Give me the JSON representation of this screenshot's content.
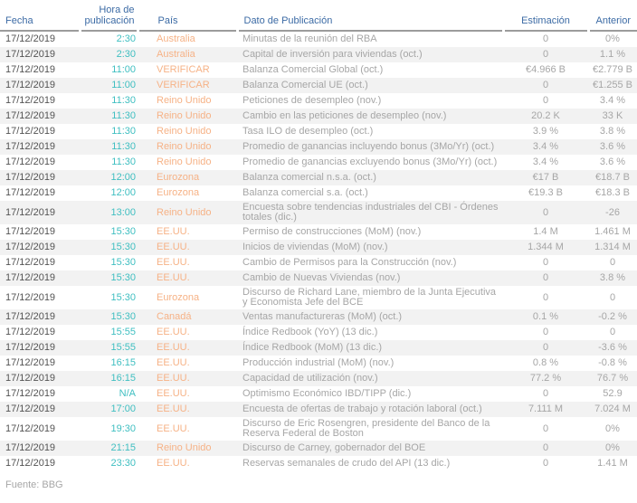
{
  "source_note": "Fuente: BBG",
  "colors": {
    "header_blue": "#3C6BA5",
    "time_teal": "#3FBFC1",
    "country_orange": "#F6B286",
    "date_text": "#545454",
    "muted_text": "#A6A6A6",
    "row_alt_bg": "#F2F2F2",
    "header_line": "#9C9C9C"
  },
  "table": {
    "headers": [
      "Fecha",
      "Hora de publicación",
      "País",
      "Dato de Publicación",
      "Estimación",
      "Anterior"
    ],
    "rows": [
      {
        "fecha": "17/12/2019",
        "hora": "2:30",
        "pais": "Australia",
        "dato": "Minutas de la reunión del RBA",
        "estimacion": "0",
        "anterior": "0%"
      },
      {
        "fecha": "17/12/2019",
        "hora": "2:30",
        "pais": "Australia",
        "dato": "Capital de inversión para viviendas (oct.)",
        "estimacion": "0",
        "anterior": "1.1 %"
      },
      {
        "fecha": "17/12/2019",
        "hora": "11:00",
        "pais": "VERIFICAR",
        "dato": "Balanza Comercial Global (oct.)",
        "estimacion": "€4.966 B",
        "anterior": "€2.779 B"
      },
      {
        "fecha": "17/12/2019",
        "hora": "11:00",
        "pais": "VERIFICAR",
        "dato": "Balanza Comercial UE (oct.)",
        "estimacion": "0",
        "anterior": "€1.255 B"
      },
      {
        "fecha": "17/12/2019",
        "hora": "11:30",
        "pais": "Reino Unido",
        "dato": "Peticiones de desempleo (nov.)",
        "estimacion": "0",
        "anterior": "3.4 %"
      },
      {
        "fecha": "17/12/2019",
        "hora": "11:30",
        "pais": "Reino Unido",
        "dato": "Cambio en las peticiones de desempleo (nov.)",
        "estimacion": "20.2 K",
        "anterior": "33 K"
      },
      {
        "fecha": "17/12/2019",
        "hora": "11:30",
        "pais": "Reino Unido",
        "dato": "Tasa ILO de desempleo (oct.)",
        "estimacion": "3.9 %",
        "anterior": "3.8 %"
      },
      {
        "fecha": "17/12/2019",
        "hora": "11:30",
        "pais": "Reino Unido",
        "dato": "Promedio de ganancias incluyendo bonus (3Mo/Yr) (oct.)",
        "estimacion": "3.4 %",
        "anterior": "3.6 %"
      },
      {
        "fecha": "17/12/2019",
        "hora": "11:30",
        "pais": "Reino Unido",
        "dato": "Promedio de ganancias excluyendo bonus (3Mo/Yr) (oct.)",
        "estimacion": "3.4 %",
        "anterior": "3.6 %"
      },
      {
        "fecha": "17/12/2019",
        "hora": "12:00",
        "pais": "Eurozona",
        "dato": "Balanza comercial n.s.a. (oct.)",
        "estimacion": "€17 B",
        "anterior": "€18.7 B"
      },
      {
        "fecha": "17/12/2019",
        "hora": "12:00",
        "pais": "Eurozona",
        "dato": "Balanza comercial s.a. (oct.)",
        "estimacion": "€19.3 B",
        "anterior": "€18.3 B"
      },
      {
        "fecha": "17/12/2019",
        "hora": "13:00",
        "pais": "Reino Unido",
        "dato": "Encuesta sobre tendencias industriales del CBI - Órdenes totales (dic.)",
        "estimacion": "0",
        "anterior": "-26"
      },
      {
        "fecha": "17/12/2019",
        "hora": "15:30",
        "pais": "EE.UU.",
        "dato": "Permiso de construcciones (MoM) (nov.)",
        "estimacion": "1.4 M",
        "anterior": "1.461 M"
      },
      {
        "fecha": "17/12/2019",
        "hora": "15:30",
        "pais": "EE.UU.",
        "dato": "Inicios de viviendas (MoM) (nov.)",
        "estimacion": "1.344 M",
        "anterior": "1.314 M"
      },
      {
        "fecha": "17/12/2019",
        "hora": "15:30",
        "pais": "EE.UU.",
        "dato": "Cambio de Permisos para la Construcción (nov.)",
        "estimacion": "0",
        "anterior": "0"
      },
      {
        "fecha": "17/12/2019",
        "hora": "15:30",
        "pais": "EE.UU.",
        "dato": "Cambio de Nuevas Viviendas (nov.)",
        "estimacion": "0",
        "anterior": "3.8 %"
      },
      {
        "fecha": "17/12/2019",
        "hora": "15:30",
        "pais": "Eurozona",
        "dato": "Discurso de Richard Lane, miembro de la Junta Ejecutiva y Economista Jefe del BCE",
        "estimacion": "0",
        "anterior": "0"
      },
      {
        "fecha": "17/12/2019",
        "hora": "15:30",
        "pais": "Canadá",
        "dato": "Ventas manufactureras (MoM) (oct.)",
        "estimacion": "0.1 %",
        "anterior": "-0.2 %"
      },
      {
        "fecha": "17/12/2019",
        "hora": "15:55",
        "pais": "EE.UU.",
        "dato": "Índice Redbook (YoY) (13 dic.)",
        "estimacion": "0",
        "anterior": "0"
      },
      {
        "fecha": "17/12/2019",
        "hora": "15:55",
        "pais": "EE.UU.",
        "dato": "Índice Redbook (MoM) (13 dic.)",
        "estimacion": "0",
        "anterior": "-3.6 %"
      },
      {
        "fecha": "17/12/2019",
        "hora": "16:15",
        "pais": "EE.UU.",
        "dato": "Producción industrial (MoM) (nov.)",
        "estimacion": "0.8 %",
        "anterior": "-0.8 %"
      },
      {
        "fecha": "17/12/2019",
        "hora": "16:15",
        "pais": "EE.UU.",
        "dato": "Capacidad de utilización (nov.)",
        "estimacion": "77.2 %",
        "anterior": "76.7 %"
      },
      {
        "fecha": "17/12/2019",
        "hora": "N/A",
        "pais": "EE.UU.",
        "dato": "Optimismo Económico IBD/TIPP (dic.)",
        "estimacion": "0",
        "anterior": "52.9"
      },
      {
        "fecha": "17/12/2019",
        "hora": "17:00",
        "pais": "EE.UU.",
        "dato": "Encuesta de ofertas de trabajo y rotación laboral (oct.)",
        "estimacion": "7.111 M",
        "anterior": "7.024 M"
      },
      {
        "fecha": "17/12/2019",
        "hora": "19:30",
        "pais": "EE.UU.",
        "dato": "Discurso de Eric Rosengren, presidente del Banco de la Reserva Federal de Boston",
        "estimacion": "0",
        "anterior": "0%"
      },
      {
        "fecha": "17/12/2019",
        "hora": "21:15",
        "pais": "Reino Unido",
        "dato": "Discurso de Carney, gobernador del BOE",
        "estimacion": "0",
        "anterior": "0%"
      },
      {
        "fecha": "17/12/2019",
        "hora": "23:30",
        "pais": "EE.UU.",
        "dato": "Reservas semanales de crudo del API (13 dic.)",
        "estimacion": "0",
        "anterior": "1.41 M"
      }
    ]
  }
}
